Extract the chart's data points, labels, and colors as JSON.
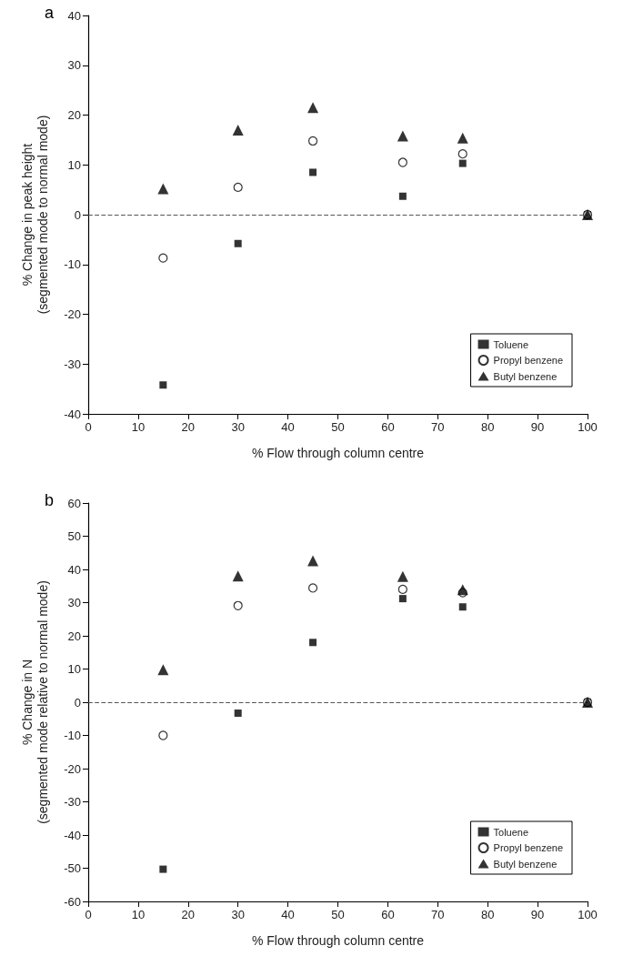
{
  "chart_data": [
    {
      "type": "scatter",
      "title": "a",
      "xlabel": "% Flow through column centre",
      "ylabel": "% Change in peak height\n(segmented mode to normal mode)",
      "x": [
        15,
        30,
        45,
        63,
        75,
        100
      ],
      "series": [
        {
          "name": "Toluene",
          "color": "#000000",
          "marker": "square",
          "values": [
            -34.2,
            -5.8,
            8.5,
            3.7,
            10.3,
            0
          ]
        },
        {
          "name": "Propyl benzene",
          "color": "#000000",
          "marker": "circle",
          "values": [
            -8.7,
            5.5,
            14.8,
            10.5,
            12.2,
            0
          ]
        },
        {
          "name": "Butyl benzene",
          "color": "#000000",
          "marker": "triangle",
          "values": [
            5.2,
            17,
            21.5,
            15.8,
            15.4,
            0
          ]
        }
      ],
      "xlim": [
        0,
        100
      ],
      "xticks": [
        0,
        10,
        20,
        30,
        40,
        50,
        60,
        70,
        80,
        90,
        100
      ],
      "ylim": [
        -40,
        40
      ],
      "yticks": [
        -40,
        -30,
        -20,
        -10,
        0,
        10,
        20,
        30,
        40
      ],
      "ref_lines": [
        {
          "axis": "y",
          "value": 0,
          "color": "#555555",
          "line_style": "dashed"
        }
      ],
      "grid": false,
      "legend": "bottom right"
    },
    {
      "type": "scatter",
      "title": "b",
      "xlabel": "% Flow through column centre",
      "ylabel": "% Change in N\n(segmented mode relative to normal mode)",
      "x": [
        15,
        30,
        45,
        63,
        75,
        100
      ],
      "series": [
        {
          "name": "Toluene",
          "color": "#000000",
          "marker": "square",
          "values": [
            -50.3,
            -3.3,
            18,
            31.2,
            28.7,
            0
          ]
        },
        {
          "name": "Propyl benzene",
          "color": "#000000",
          "marker": "circle",
          "values": [
            -10,
            29.1,
            34.4,
            34,
            33,
            0
          ]
        },
        {
          "name": "Butyl benzene",
          "color": "#000000",
          "marker": "triangle",
          "values": [
            9.8,
            38,
            42.6,
            37.9,
            33.9,
            0
          ]
        }
      ],
      "xlim": [
        0,
        100
      ],
      "xticks": [
        0,
        10,
        20,
        30,
        40,
        50,
        60,
        70,
        80,
        90,
        100
      ],
      "ylim": [
        -60,
        60
      ],
      "yticks": [
        -60,
        -50,
        -40,
        -30,
        -20,
        -10,
        0,
        10,
        20,
        30,
        40,
        50,
        60
      ],
      "ref_lines": [
        {
          "axis": "y",
          "value": 0,
          "color": "#555555",
          "line_style": "dashed"
        }
      ],
      "grid": false,
      "legend": "bottom right"
    }
  ]
}
